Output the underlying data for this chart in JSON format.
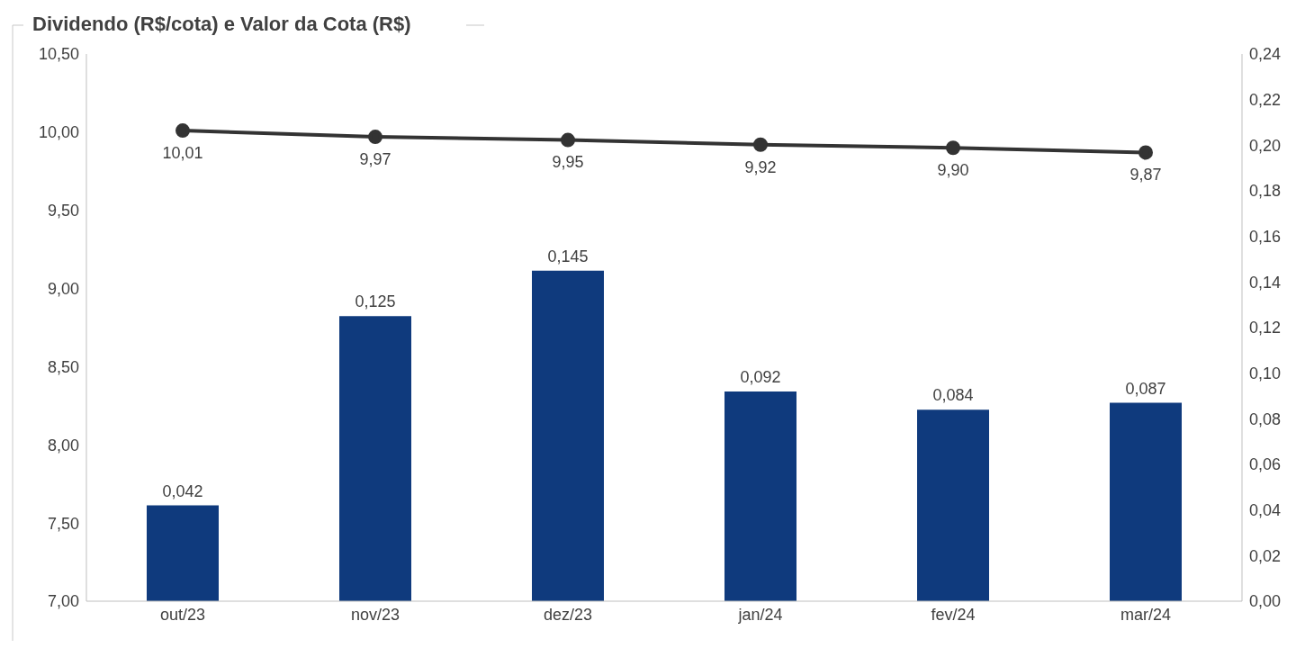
{
  "chart_data": {
    "type": "bar",
    "title": "Dividendo (R$/cota) e Valor da Cota (R$)",
    "categories": [
      "out/23",
      "nov/23",
      "dez/23",
      "jan/24",
      "fev/24",
      "mar/24"
    ],
    "series": [
      {
        "axis": "y2",
        "color": "#0f3a7d",
        "values": [
          0.042,
          0.125,
          0.145,
          0.092,
          0.084,
          0.087
        ],
        "value_labels": [
          "0,042",
          "0,125",
          "0,145",
          "0,092",
          "0,084",
          "0,087"
        ]
      },
      {
        "type": "line",
        "color": "#333333",
        "marker": "circle",
        "values": [
          10.01,
          9.97,
          9.95,
          9.92,
          9.9,
          9.87
        ],
        "value_labels": [
          "10,01",
          "9,97",
          "9,95",
          "9,92",
          "9,90",
          "9,87"
        ]
      }
    ],
    "ylim": [
      7,
      10.5
    ],
    "yticks": [
      {
        "value": 7,
        "label": "7,00"
      },
      {
        "value": 7.5,
        "label": "7,50"
      },
      {
        "value": 8,
        "label": "8,00"
      },
      {
        "value": 8.5,
        "label": "8,50"
      },
      {
        "value": 9,
        "label": "9,00"
      },
      {
        "value": 9.5,
        "label": "9,50"
      },
      {
        "value": 10,
        "label": "10,00"
      },
      {
        "value": 10.5,
        "label": "10,50"
      }
    ],
    "y2lim": [
      0,
      0.24
    ],
    "y2ticks": [
      {
        "value": 0,
        "label": "0,00"
      },
      {
        "value": 0.02,
        "label": "0,02"
      },
      {
        "value": 0.04,
        "label": "0,04"
      },
      {
        "value": 0.06,
        "label": "0,06"
      },
      {
        "value": 0.08,
        "label": "0,08"
      },
      {
        "value": 0.1,
        "label": "0,10"
      },
      {
        "value": 0.12,
        "label": "0,12"
      },
      {
        "value": 0.14,
        "label": "0,14"
      },
      {
        "value": 0.16,
        "label": "0,16"
      },
      {
        "value": 0.18,
        "label": "0,18"
      },
      {
        "value": 0.2,
        "label": "0,20"
      },
      {
        "value": 0.22,
        "label": "0,22"
      },
      {
        "value": 0.24,
        "label": "0,24"
      }
    ],
    "grid": false,
    "legend": false
  }
}
